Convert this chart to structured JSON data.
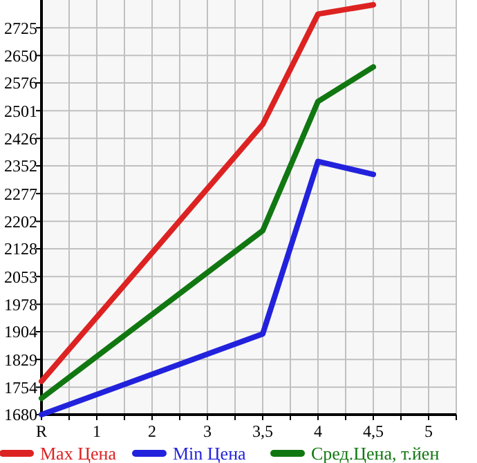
{
  "chart_data": {
    "type": "line",
    "categories": [
      "R",
      "1",
      "2",
      "3",
      "3,5",
      "4",
      "4,5",
      "5"
    ],
    "series": [
      {
        "name": "Max Цена",
        "color": "#dd2222",
        "values": [
          1770,
          null,
          null,
          null,
          2464,
          2762,
          2787,
          null
        ]
      },
      {
        "name": "Min Цена",
        "color": "#2222dd",
        "values": [
          1680,
          null,
          null,
          null,
          1898,
          2364,
          2329,
          null
        ]
      },
      {
        "name": "Сред.Цена, т.йен",
        "color": "#117711",
        "values": [
          1724,
          null,
          null,
          null,
          2177,
          2526,
          2619,
          null
        ]
      }
    ],
    "ylim": [
      1680,
      2800
    ],
    "yticks": [
      1680,
      1754,
      1829,
      1904,
      1978,
      2053,
      2128,
      2202,
      2277,
      2352,
      2426,
      2501,
      2576,
      2650,
      2725
    ],
    "grid": true,
    "legend": "bottom",
    "marker": "none",
    "line_style": "solid"
  }
}
